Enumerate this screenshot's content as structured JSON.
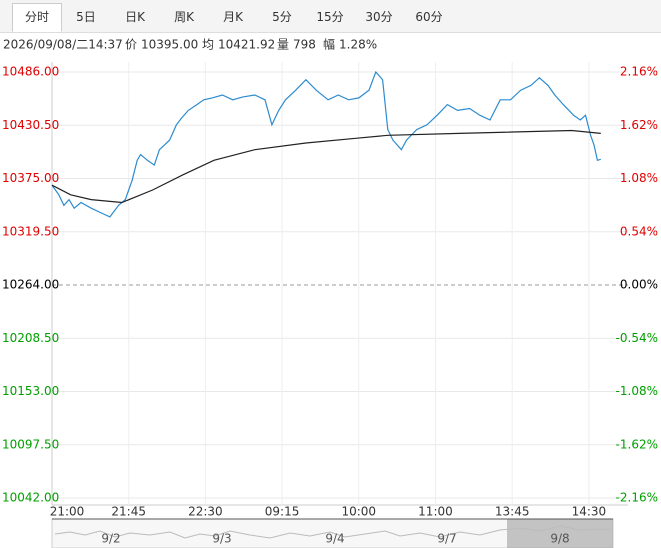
{
  "tabs": [
    "分时",
    "5日",
    "日K",
    "周K",
    "月K",
    "5分",
    "15分",
    "30分",
    "60分"
  ],
  "info": {
    "datetime": "2026/09/08/二14:37",
    "price_label": "价",
    "price": "10395.00",
    "avg_label": "均",
    "avg": "10421.92",
    "volume_label": "量",
    "volume": "798",
    "range_label": "幅",
    "range": "1.28%"
  },
  "chart_data": {
    "type": "line",
    "xlim": [
      0,
      345
    ],
    "xticks": [
      {
        "value": 0,
        "label": "21:00"
      },
      {
        "value": 45,
        "label": "21:45"
      },
      {
        "value": 90,
        "label": "22:30"
      },
      {
        "value": 135,
        "label": "09:15"
      },
      {
        "value": 180,
        "label": "10:00"
      },
      {
        "value": 225,
        "label": "11:00"
      },
      {
        "value": 270,
        "label": "13:45"
      },
      {
        "value": 315,
        "label": "14:30"
      }
    ],
    "ylim": [
      10042,
      10486
    ],
    "yticks": [
      {
        "value": 10486,
        "label": "10486.00"
      },
      {
        "value": 10430.5,
        "label": "10430.50"
      },
      {
        "value": 10375,
        "label": "10375.00"
      },
      {
        "value": 10319.5,
        "label": "10319.50"
      },
      {
        "value": 10264,
        "label": "10264.00"
      },
      {
        "value": 10208.5,
        "label": "10208.50"
      },
      {
        "value": 10153,
        "label": "10153.00"
      },
      {
        "value": 10097.5,
        "label": "10097.50"
      },
      {
        "value": 10042,
        "label": "10042.00"
      }
    ],
    "y2lim": [
      -2.16,
      2.16
    ],
    "y2ticks": [
      {
        "value": 2.16,
        "label": "2.16%"
      },
      {
        "value": 1.62,
        "label": "1.62%"
      },
      {
        "value": 1.08,
        "label": "1.08%"
      },
      {
        "value": 0.54,
        "label": "0.54%"
      },
      {
        "value": 0,
        "label": "0.00%"
      },
      {
        "value": -0.54,
        "label": "-0.54%"
      },
      {
        "value": -1.08,
        "label": "-1.08%"
      },
      {
        "value": -1.62,
        "label": "-1.62%"
      },
      {
        "value": -2.16,
        "label": "-2.16%"
      }
    ],
    "up_color": "#e00000",
    "down_color": "#00a000",
    "flat_color": "#000000",
    "series": [
      {
        "color": "#2b8bd0",
        "x": [
          0,
          4,
          7,
          10,
          13,
          17,
          23,
          29,
          34,
          39,
          43,
          47,
          50,
          52,
          56,
          60,
          63,
          66,
          69,
          73,
          76,
          80,
          85,
          89,
          94,
          100,
          106,
          112,
          119,
          125,
          129,
          133,
          137,
          143,
          149,
          155,
          162,
          168,
          174,
          180,
          186,
          190,
          194,
          197,
          200,
          205,
          208,
          214,
          220,
          226,
          232,
          238,
          245,
          251,
          257,
          263,
          269,
          275,
          281,
          286,
          291,
          295,
          300,
          306,
          310,
          313,
          316,
          318,
          320,
          322
        ],
        "values": [
          10368,
          10358,
          10347,
          10353,
          10344,
          10350,
          10344,
          10339,
          10335,
          10347,
          10353,
          10373,
          10394,
          10400,
          10394,
          10389,
          10405,
          10410,
          10415,
          10431,
          10438,
          10446,
          10452,
          10457,
          10459,
          10462,
          10457,
          10460,
          10462,
          10457,
          10431,
          10446,
          10457,
          10467,
          10478,
          10467,
          10457,
          10462,
          10457,
          10459,
          10467,
          10486,
          10478,
          10426,
          10415,
          10405,
          10415,
          10426,
          10431,
          10441,
          10452,
          10446,
          10448,
          10441,
          10436,
          10457,
          10457,
          10467,
          10472,
          10480,
          10472,
          10462,
          10452,
          10441,
          10436,
          10441,
          10420,
          10410,
          10394,
          10395
        ]
      },
      {
        "color": "#222222",
        "x": [
          0,
          11,
          23,
          41,
          59,
          77,
          95,
          119,
          149,
          179,
          197,
          239,
          305,
          322
        ],
        "values": [
          10368,
          10358,
          10353,
          10350,
          10363,
          10379,
          10394,
          10405,
          10412,
          10417,
          10420,
          10422,
          10425,
          10422
        ]
      }
    ]
  },
  "navigator": {
    "dates": [
      "9/2",
      "9/3",
      "9/4",
      "9/7",
      "9/8"
    ]
  }
}
